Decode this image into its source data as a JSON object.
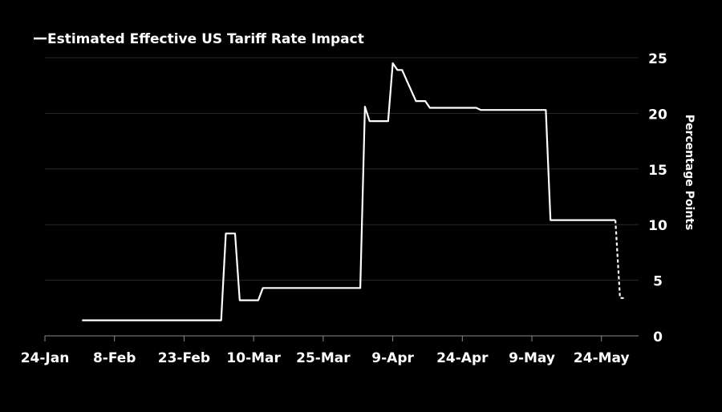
{
  "chart_data": {
    "type": "line",
    "title": "",
    "xlabel": "",
    "ylabel": "Percentage Points",
    "ylim": [
      0,
      25
    ],
    "y_ticks": [
      0,
      5,
      10,
      15,
      20,
      25
    ],
    "y_axis_side": "right",
    "x_ticks": [
      {
        "label": "24-Jan",
        "date": "2025-01-24"
      },
      {
        "label": "8-Feb",
        "date": "2025-02-08"
      },
      {
        "label": "23-Feb",
        "date": "2025-02-23"
      },
      {
        "label": "10-Mar",
        "date": "2025-03-10"
      },
      {
        "label": "25-Mar",
        "date": "2025-03-25"
      },
      {
        "label": "9-Apr",
        "date": "2025-04-09"
      },
      {
        "label": "24-Apr",
        "date": "2025-04-24"
      },
      {
        "label": "9-May",
        "date": "2025-05-09"
      },
      {
        "label": "24-May",
        "date": "2025-05-24"
      }
    ],
    "xlim": [
      "2025-01-24",
      "2025-06-01"
    ],
    "grid": true,
    "legend": "top-left",
    "series": [
      {
        "name": "Estimated Effective US Tariff Rate Impact",
        "color": "#ffffff",
        "style": "solid",
        "points": [
          {
            "x": "2025-02-01",
            "y": 1.4
          },
          {
            "x": "2025-03-03",
            "y": 1.4
          },
          {
            "x": "2025-03-04",
            "y": 9.2
          },
          {
            "x": "2025-03-06",
            "y": 9.2
          },
          {
            "x": "2025-03-07",
            "y": 3.2
          },
          {
            "x": "2025-03-11",
            "y": 3.2
          },
          {
            "x": "2025-03-12",
            "y": 4.3
          },
          {
            "x": "2025-04-02",
            "y": 4.3
          },
          {
            "x": "2025-04-03",
            "y": 20.6
          },
          {
            "x": "2025-04-04",
            "y": 19.3
          },
          {
            "x": "2025-04-08",
            "y": 19.3
          },
          {
            "x": "2025-04-09",
            "y": 24.5
          },
          {
            "x": "2025-04-10",
            "y": 23.9
          },
          {
            "x": "2025-04-11",
            "y": 23.9
          },
          {
            "x": "2025-04-14",
            "y": 21.1
          },
          {
            "x": "2025-04-16",
            "y": 21.1
          },
          {
            "x": "2025-04-17",
            "y": 20.5
          },
          {
            "x": "2025-04-27",
            "y": 20.5
          },
          {
            "x": "2025-04-28",
            "y": 20.3
          },
          {
            "x": "2025-05-12",
            "y": 20.3
          },
          {
            "x": "2025-05-13",
            "y": 10.4
          },
          {
            "x": "2025-05-27",
            "y": 10.4
          }
        ]
      },
      {
        "name": "",
        "color": "#ffffff",
        "style": "dashed",
        "points": [
          {
            "x": "2025-05-27",
            "y": 10.4
          },
          {
            "x": "2025-05-28",
            "y": 3.4
          },
          {
            "x": "2025-05-29",
            "y": 3.4
          }
        ]
      }
    ]
  }
}
